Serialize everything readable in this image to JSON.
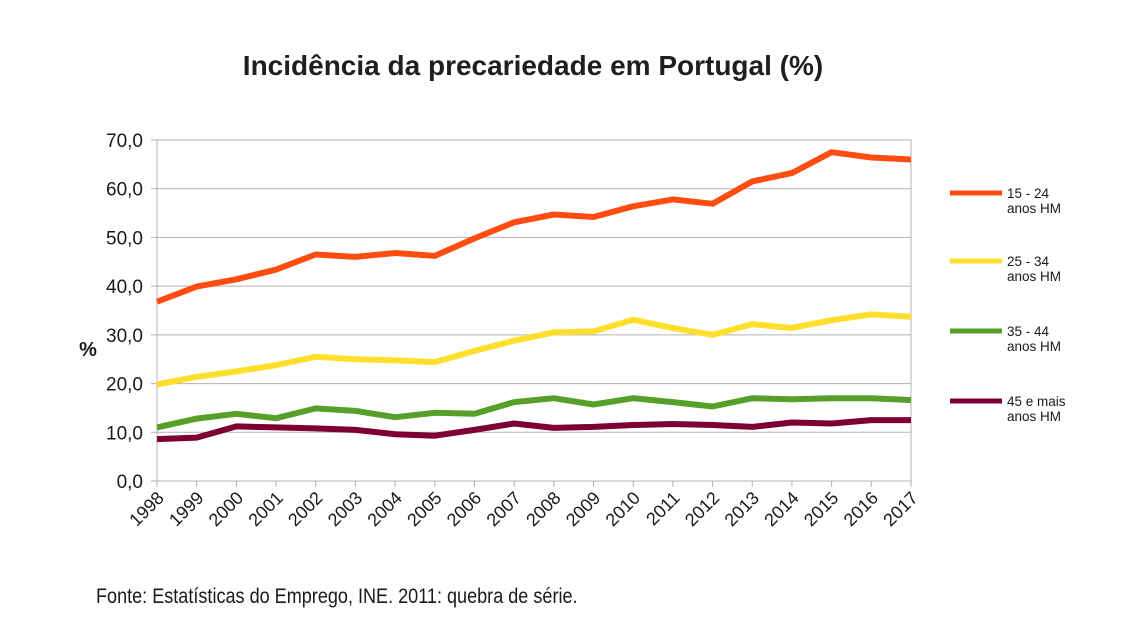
{
  "chart_data": {
    "type": "line",
    "title": "Incidência da precariedade em Portugal (%)",
    "xlabel": "",
    "ylabel": "%",
    "categories": [
      "1998",
      "1999",
      "2000",
      "2001",
      "2002",
      "2003",
      "2004",
      "2005",
      "2006",
      "2007",
      "2008",
      "2009",
      "2010",
      "2011",
      "2012",
      "2013",
      "2014",
      "2015",
      "2016",
      "2017"
    ],
    "ylim": [
      0,
      70
    ],
    "yticks": [
      "0,0",
      "10,0",
      "20,0",
      "30,0",
      "40,0",
      "50,0",
      "60,0",
      "70,0"
    ],
    "grid": true,
    "legend_position": "right",
    "series": [
      {
        "name_lines": [
          "15 - 24",
          "anos HM"
        ],
        "color": "#ff4d12",
        "values": [
          36.8,
          39.9,
          41.4,
          43.4,
          46.5,
          46.0,
          46.8,
          46.2,
          49.8,
          53.1,
          54.7,
          54.2,
          56.4,
          57.8,
          56.9,
          61.5,
          63.2,
          67.5,
          66.4,
          66.0
        ]
      },
      {
        "name_lines": [
          "25 - 34",
          "anos HM"
        ],
        "color": "#ffdf2c",
        "values": [
          19.8,
          21.4,
          22.5,
          23.8,
          25.5,
          25.0,
          24.8,
          24.4,
          26.7,
          28.8,
          30.5,
          30.7,
          33.1,
          31.4,
          30.0,
          32.2,
          31.4,
          33.0,
          34.2,
          33.7
        ]
      },
      {
        "name_lines": [
          "35 - 44",
          "anos HM"
        ],
        "color": "#56a02a",
        "values": [
          11.0,
          12.8,
          13.8,
          12.9,
          14.9,
          14.4,
          13.1,
          14.0,
          13.8,
          16.2,
          17.0,
          15.7,
          17.0,
          16.2,
          15.3,
          17.0,
          16.8,
          17.0,
          17.0,
          16.6
        ]
      },
      {
        "name_lines": [
          "45 e mais",
          "anos HM"
        ],
        "color": "#7e0032",
        "values": [
          8.6,
          8.9,
          11.2,
          11.0,
          10.8,
          10.5,
          9.6,
          9.3,
          10.5,
          11.8,
          10.9,
          11.1,
          11.5,
          11.7,
          11.5,
          11.1,
          12.0,
          11.8,
          12.5,
          12.5
        ]
      }
    ]
  },
  "source_note": "Fonte: Estatísticas do Emprego, INE. 2011: quebra de série."
}
